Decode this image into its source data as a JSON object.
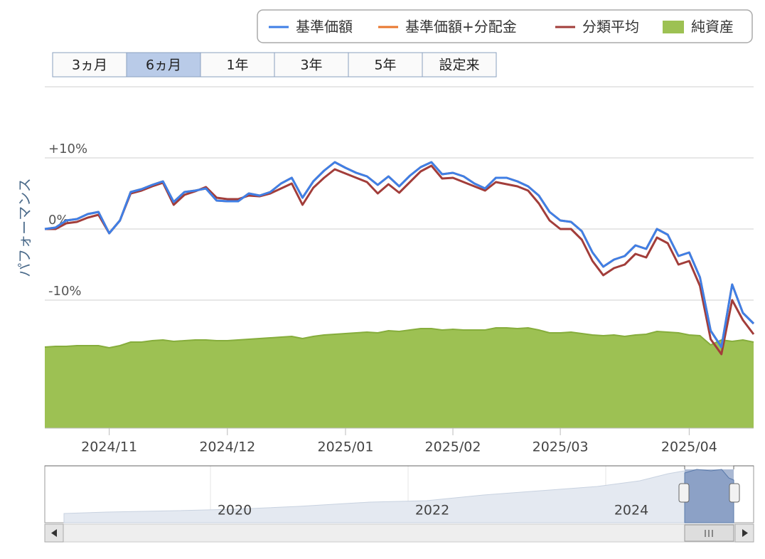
{
  "chart_data": {
    "type": "line",
    "y_axis_label": "パフォーマンス",
    "range_buttons": [
      "3ヵ月",
      "6ヵ月",
      "1年",
      "3年",
      "5年",
      "設定来"
    ],
    "selected_range": 1,
    "categories": [
      null,
      null,
      null,
      null,
      null,
      null,
      "2024/11",
      null,
      null,
      null,
      null,
      null,
      null,
      null,
      null,
      null,
      null,
      "2024/12",
      null,
      null,
      null,
      null,
      null,
      null,
      null,
      null,
      null,
      null,
      "2025/01",
      null,
      null,
      null,
      null,
      null,
      null,
      null,
      null,
      null,
      "2025/02",
      null,
      null,
      null,
      null,
      null,
      null,
      null,
      null,
      null,
      "2025/03",
      null,
      null,
      null,
      null,
      null,
      null,
      null,
      null,
      null,
      null,
      null,
      "2025/04",
      null,
      null,
      null,
      null,
      null,
      null
    ],
    "ylim": [
      -28,
      20
    ],
    "yticks": [
      {
        "value": 20,
        "label": null
      },
      {
        "value": 10,
        "label": "+10%"
      },
      {
        "value": 0,
        "label": "0%"
      },
      {
        "value": -10,
        "label": "-10%"
      },
      {
        "value": -20,
        "label": null
      }
    ],
    "grid": true,
    "series": [
      {
        "name": "純資産",
        "type": "area",
        "color": "#9dc153",
        "values": [
          -16.6,
          -16.5,
          -16.5,
          -16.4,
          -16.4,
          -16.4,
          -16.7,
          -16.4,
          -15.9,
          -15.9,
          -15.7,
          -15.6,
          -15.8,
          -15.7,
          -15.6,
          -15.6,
          -15.7,
          -15.7,
          -15.6,
          -15.5,
          -15.4,
          -15.3,
          -15.2,
          -15.1,
          -15.4,
          -15.1,
          -14.9,
          -14.8,
          -14.7,
          -14.6,
          -14.5,
          -14.6,
          -14.3,
          -14.4,
          -14.2,
          -14.0,
          -14.0,
          -14.2,
          -14.1,
          -14.2,
          -14.2,
          -14.2,
          -13.9,
          -13.9,
          -14.0,
          -13.9,
          -14.2,
          -14.6,
          -14.6,
          -14.5,
          -14.7,
          -14.9,
          -15.0,
          -14.9,
          -15.1,
          -14.9,
          -14.8,
          -14.4,
          -14.5,
          -14.6,
          -14.9,
          -15.0,
          -16.3,
          -15.6,
          -15.8,
          -15.6,
          -15.9
        ]
      },
      {
        "name": "基準価額+分配金",
        "type": "line",
        "color": "#e8772e",
        "values": [
          0.0,
          0.2,
          1.2,
          1.4,
          2.1,
          2.4,
          -0.6,
          1.2,
          5.2,
          5.6,
          6.2,
          6.7,
          3.8,
          5.2,
          5.4,
          5.7,
          4.0,
          3.9,
          3.9,
          5.0,
          4.7,
          5.2,
          6.4,
          7.2,
          4.4,
          6.7,
          8.2,
          9.4,
          8.6,
          7.9,
          7.4,
          6.2,
          7.4,
          6.0,
          7.5,
          8.7,
          9.4,
          7.7,
          7.9,
          7.4,
          6.4,
          5.7,
          7.2,
          7.2,
          6.7,
          6.0,
          4.7,
          2.4,
          1.2,
          1.0,
          -0.3,
          -3.3,
          -5.3,
          -4.3,
          -3.8,
          -2.3,
          -2.8,
          0.0,
          -0.8,
          -3.8,
          -3.3,
          -6.8,
          -14.3,
          -16.6,
          -7.8,
          -11.8,
          -13.3
        ]
      },
      {
        "name": "分類平均",
        "type": "line",
        "color": "#a23d3a",
        "values": [
          0.0,
          0.0,
          0.8,
          1.0,
          1.6,
          2.0,
          -0.6,
          1.2,
          5.0,
          5.4,
          6.0,
          6.5,
          3.4,
          4.8,
          5.3,
          5.9,
          4.4,
          4.2,
          4.2,
          4.7,
          4.6,
          5.0,
          5.7,
          6.4,
          3.4,
          5.8,
          7.2,
          8.4,
          7.8,
          7.2,
          6.6,
          5.0,
          6.3,
          5.1,
          6.6,
          8.1,
          8.9,
          7.1,
          7.2,
          6.6,
          6.0,
          5.4,
          6.6,
          6.3,
          6.0,
          5.4,
          3.6,
          1.2,
          0.0,
          0.0,
          -1.5,
          -4.5,
          -6.5,
          -5.5,
          -5.0,
          -3.5,
          -4.0,
          -1.2,
          -2.0,
          -5.0,
          -4.5,
          -8.0,
          -15.5,
          -17.6,
          -10.0,
          -12.8,
          -14.8
        ]
      },
      {
        "name": "基準価額",
        "type": "line",
        "color": "#3f7fe6",
        "values": [
          0.0,
          0.2,
          1.2,
          1.4,
          2.1,
          2.4,
          -0.6,
          1.2,
          5.2,
          5.6,
          6.2,
          6.7,
          3.8,
          5.2,
          5.4,
          5.7,
          4.0,
          3.9,
          3.9,
          5.0,
          4.7,
          5.2,
          6.4,
          7.2,
          4.4,
          6.7,
          8.2,
          9.4,
          8.6,
          7.9,
          7.4,
          6.2,
          7.4,
          6.0,
          7.5,
          8.7,
          9.4,
          7.7,
          7.9,
          7.4,
          6.4,
          5.7,
          7.2,
          7.2,
          6.7,
          6.0,
          4.7,
          2.4,
          1.2,
          1.0,
          -0.3,
          -3.3,
          -5.3,
          -4.3,
          -3.8,
          -2.3,
          -2.8,
          0.0,
          -0.8,
          -3.8,
          -3.3,
          -6.8,
          -14.3,
          -16.6,
          -7.8,
          -11.8,
          -13.3
        ]
      }
    ],
    "legend_order": [
      3,
      1,
      2,
      0
    ],
    "navigator_labels": [
      "2020",
      "2022",
      "2024"
    ]
  }
}
